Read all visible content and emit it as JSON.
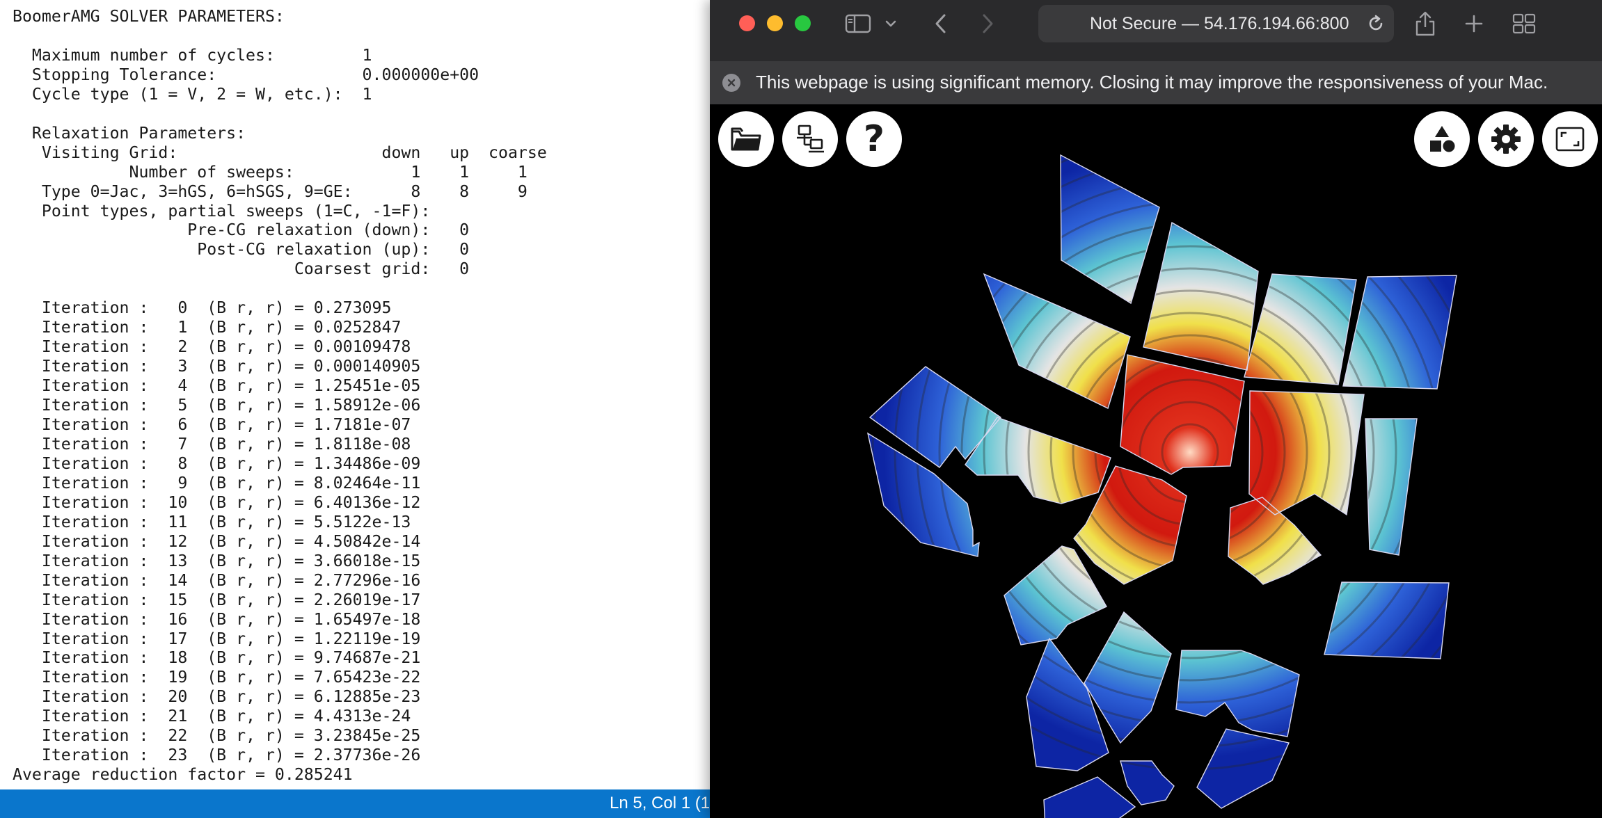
{
  "terminal": {
    "lines": [
      "BoomerAMG SOLVER PARAMETERS:",
      "",
      "  Maximum number of cycles:         1",
      "  Stopping Tolerance:               0.000000e+00",
      "  Cycle type (1 = V, 2 = W, etc.):  1",
      "",
      "  Relaxation Parameters:",
      "   Visiting Grid:                     down   up  coarse",
      "            Number of sweeps:            1    1     1",
      "   Type 0=Jac, 3=hGS, 6=hSGS, 9=GE:      8    8     9",
      "   Point types, partial sweeps (1=C, -1=F):",
      "                  Pre-CG relaxation (down):   0",
      "                   Post-CG relaxation (up):   0",
      "                             Coarsest grid:   0",
      "",
      "   Iteration :   0  (B r, r) = 0.273095",
      "   Iteration :   1  (B r, r) = 0.0252847",
      "   Iteration :   2  (B r, r) = 0.00109478",
      "   Iteration :   3  (B r, r) = 0.000140905",
      "   Iteration :   4  (B r, r) = 1.25451e-05",
      "   Iteration :   5  (B r, r) = 1.58912e-06",
      "   Iteration :   6  (B r, r) = 1.7181e-07",
      "   Iteration :   7  (B r, r) = 1.8118e-08",
      "   Iteration :   8  (B r, r) = 1.34486e-09",
      "   Iteration :   9  (B r, r) = 8.02464e-11",
      "   Iteration :  10  (B r, r) = 6.40136e-12",
      "   Iteration :  11  (B r, r) = 5.5122e-13",
      "   Iteration :  12  (B r, r) = 4.50842e-14",
      "   Iteration :  13  (B r, r) = 3.66018e-15",
      "   Iteration :  14  (B r, r) = 2.77296e-16",
      "   Iteration :  15  (B r, r) = 2.26019e-17",
      "   Iteration :  16  (B r, r) = 1.65497e-18",
      "   Iteration :  17  (B r, r) = 1.22119e-19",
      "   Iteration :  18  (B r, r) = 9.74687e-21",
      "   Iteration :  19  (B r, r) = 7.65423e-22",
      "   Iteration :  20  (B r, r) = 6.12885e-23",
      "   Iteration :  21  (B r, r) = 4.4313e-24",
      "   Iteration :  22  (B r, r) = 3.23845e-25",
      "   Iteration :  23  (B r, r) = 2.37736e-26",
      "Average reduction factor = 0.285241"
    ]
  },
  "status_bar": {
    "position_text": "Ln 5, Col 1 (1"
  },
  "browser": {
    "address": "Not Secure — 54.176.194.66:800",
    "notice": "This webpage is using significant memory. Closing it may improve the responsiveness of your Mac.",
    "help_label": "?",
    "icons": {
      "sidebar": "sidebar-icon",
      "chevron": "chevron-down-icon",
      "back": "back-icon",
      "forward": "forward-icon",
      "reload": "reload-icon",
      "share": "share-icon",
      "new_tab": "plus-icon",
      "tab_overview": "grid-icon",
      "open": "folder-icon",
      "network": "network-icon",
      "shapes": "shapes-icon",
      "settings": "gear-icon",
      "fullscreen": "fullscreen-icon"
    },
    "colors": {
      "traffic_close": "#ff5f57",
      "traffic_minimize": "#febc2e",
      "traffic_maximize": "#28c840",
      "status_bar": "#0a76cc"
    }
  },
  "visualization": {
    "field_colors": [
      "#ffdbc4",
      "#e0301c",
      "#d1190f",
      "#f0e04a",
      "#e4e4e4",
      "#5cc4d2",
      "#2e62d8",
      "#0d25a4"
    ]
  }
}
